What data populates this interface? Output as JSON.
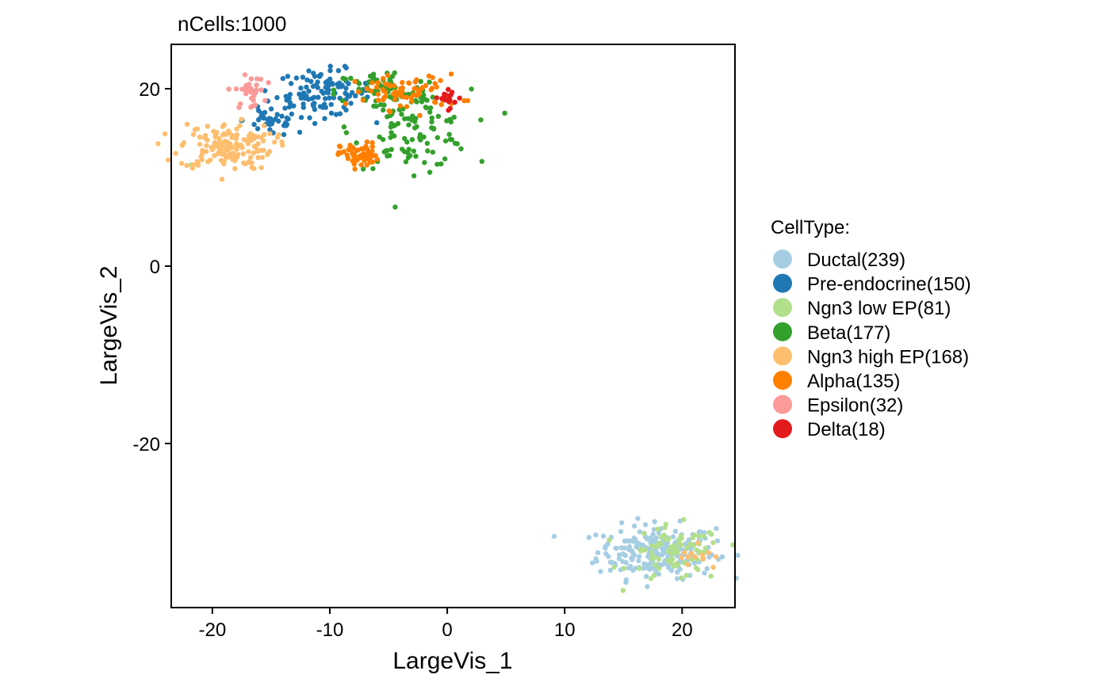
{
  "chart_data": {
    "type": "scatter",
    "title": "nCells:1000",
    "xlabel": "LargeVis_1",
    "ylabel": "LargeVis_2",
    "xlim": [
      -23.5,
      24.5
    ],
    "ylim": [
      -38.5,
      25
    ],
    "x_ticks": [
      -20,
      -10,
      0,
      10,
      20
    ],
    "x_tick_labels": [
      "-20",
      "-10",
      "0",
      "10",
      "20"
    ],
    "y_ticks": [
      -20,
      0,
      20
    ],
    "y_tick_labels": [
      "-20",
      "0",
      "20"
    ],
    "grid": false,
    "legend_position": "right",
    "legend_title": "CellType:",
    "series": [
      {
        "name": "Ductal(239)",
        "count": 239,
        "color": "#A6CEE3",
        "clusters": [
          {
            "center": [
              17.8,
              -32.2
            ],
            "spread": [
              2.5,
              1.5
            ],
            "n": 239
          }
        ]
      },
      {
        "name": "Pre-endocrine(150)",
        "count": 150,
        "color": "#1F78B4",
        "clusters": [
          {
            "center": [
              -10.5,
              19.5
            ],
            "spread": [
              2.0,
              1.3
            ],
            "n": 110
          },
          {
            "center": [
              -15.0,
              16.5
            ],
            "spread": [
              1.2,
              1.0
            ],
            "n": 40
          }
        ]
      },
      {
        "name": "Ngn3 low EP(81)",
        "count": 81,
        "color": "#B2DF8A",
        "clusters": [
          {
            "center": [
              19.5,
              -32.5
            ],
            "spread": [
              2.0,
              1.6
            ],
            "n": 79
          },
          {
            "center": [
              -21.5,
              11.2
            ],
            "spread": [
              0.2,
              0.2
            ],
            "n": 2
          }
        ]
      },
      {
        "name": "Beta(177)",
        "count": 177,
        "color": "#33A02C",
        "clusters": [
          {
            "center": [
              -3.0,
              15.5
            ],
            "spread": [
              2.5,
              2.2
            ],
            "n": 110
          },
          {
            "center": [
              -5.5,
              19.8
            ],
            "spread": [
              2.0,
              1.2
            ],
            "n": 67
          }
        ]
      },
      {
        "name": "Ngn3 high EP(168)",
        "count": 168,
        "color": "#FDBF6F",
        "clusters": [
          {
            "center": [
              -18.8,
              13.5
            ],
            "spread": [
              2.0,
              1.3
            ],
            "n": 155
          },
          {
            "center": [
              21.5,
              -32.8
            ],
            "spread": [
              0.8,
              0.9
            ],
            "n": 13
          }
        ]
      },
      {
        "name": "Alpha(135)",
        "count": 135,
        "color": "#FF7F00",
        "clusters": [
          {
            "center": [
              -7.5,
              12.5
            ],
            "spread": [
              0.8,
              0.7
            ],
            "n": 60
          },
          {
            "center": [
              -3.5,
              19.6
            ],
            "spread": [
              2.3,
              1.0
            ],
            "n": 75
          }
        ]
      },
      {
        "name": "Epsilon(32)",
        "count": 32,
        "color": "#FB9A99",
        "clusters": [
          {
            "center": [
              -16.8,
              19.6
            ],
            "spread": [
              0.6,
              0.9
            ],
            "n": 32
          }
        ]
      },
      {
        "name": "Delta(18)",
        "count": 18,
        "color": "#E31A1C",
        "clusters": [
          {
            "center": [
              0.0,
              19.0
            ],
            "spread": [
              0.7,
              0.6
            ],
            "n": 18
          }
        ]
      }
    ]
  }
}
